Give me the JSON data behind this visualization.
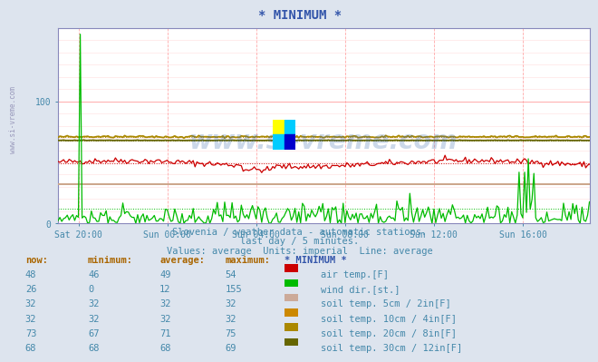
{
  "title": "* MINIMUM *",
  "background_color": "#dde4ee",
  "plot_bg_color": "#ffffff",
  "subtitle1": "Slovenia / weather data - automatic stations.",
  "subtitle2": "last day / 5 minutes.",
  "subtitle3": "Values: average  Units: imperial  Line: average",
  "watermark": "www.si-vreme.com",
  "xlabels": [
    "Sat 20:00",
    "Sun 00:00",
    "Sun 04:00",
    "Sun 08:00",
    "Sun 12:00",
    "Sun 16:00"
  ],
  "xlabel_fracs": [
    0.0416,
    0.2083,
    0.375,
    0.5416,
    0.7083,
    0.875
  ],
  "ylim": [
    0,
    160
  ],
  "yticks": [
    0,
    100
  ],
  "table_headers": [
    "now:",
    "minimum:",
    "average:",
    "maximum:",
    "* MINIMUM *"
  ],
  "table_rows": [
    {
      "now": "48",
      "min": "46",
      "avg": "49",
      "max": "54",
      "color": "#cc0000",
      "label": "air temp.[F]"
    },
    {
      "now": "26",
      "min": "0",
      "avg": "12",
      "max": "155",
      "color": "#00bb00",
      "label": "wind dir.[st.]"
    },
    {
      "now": "32",
      "min": "32",
      "avg": "32",
      "max": "32",
      "color": "#ccaa99",
      "label": "soil temp. 5cm / 2in[F]"
    },
    {
      "now": "32",
      "min": "32",
      "avg": "32",
      "max": "32",
      "color": "#cc8800",
      "label": "soil temp. 10cm / 4in[F]"
    },
    {
      "now": "73",
      "min": "67",
      "avg": "71",
      "max": "75",
      "color": "#aa8800",
      "label": "soil temp. 20cm / 8in[F]"
    },
    {
      "now": "68",
      "min": "68",
      "avg": "68",
      "max": "69",
      "color": "#666600",
      "label": "soil temp. 30cm / 12in[F]"
    }
  ],
  "n_points": 288,
  "air_temp_avg": 49,
  "wind_dir_avg": 12,
  "soil5_val": 32,
  "soil10_val": 32,
  "soil20_avg": 71,
  "soil30_avg": 68
}
